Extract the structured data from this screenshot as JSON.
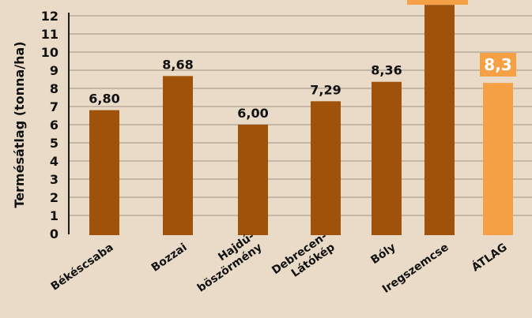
{
  "colors": {
    "background": "#eadbc8",
    "bar": "#a0520a",
    "average_bar": "#f5a045",
    "average_label_bg": "#f5a045",
    "grid": "#b9aa9b",
    "axis": "#1a1a1a",
    "text": "#111111"
  },
  "chart_data": {
    "type": "bar",
    "title": "",
    "xlabel": "",
    "ylabel": "Termésátlag (tonna/ha)",
    "ylim": [
      0,
      12
    ],
    "y_ticks": [
      "0",
      "1",
      "2",
      "3",
      "4",
      "5",
      "6",
      "7",
      "8",
      "9",
      "10",
      "11",
      "12"
    ],
    "grid": true,
    "categories": [
      "Békéscsaba",
      "Bozzai",
      "Hajdú-böszörmény",
      "Debrecen-Látókép",
      "Bóly",
      "Iregszemcse",
      "ÁTLAG"
    ],
    "category_lines": [
      [
        "Békéscsaba"
      ],
      [
        "Bozzai"
      ],
      [
        "Hajdú-",
        "böszörmény"
      ],
      [
        "Debrecen-",
        "Látókép"
      ],
      [
        "Bóly"
      ],
      [
        "Iregszemcse"
      ],
      [
        "ÁTLAG"
      ]
    ],
    "values": [
      6.8,
      8.68,
      6.0,
      7.29,
      8.36,
      12.6,
      8.3
    ],
    "value_labels": [
      "6,80",
      "8,68",
      "6,00",
      "7,29",
      "8,36",
      "",
      "8,3"
    ],
    "highlight": [
      false,
      false,
      false,
      false,
      false,
      false,
      true
    ]
  }
}
